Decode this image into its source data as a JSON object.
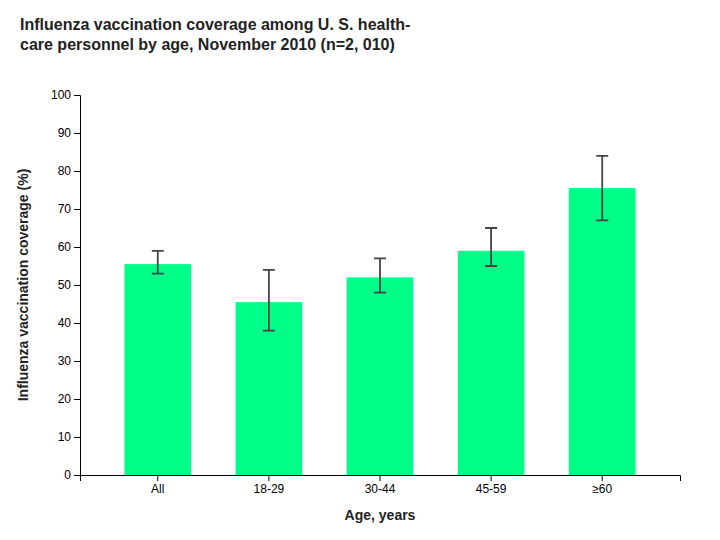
{
  "chart_data": {
    "type": "bar",
    "title": "Influenza vaccination coverage among U. S. health-\ncare personnel by age, November 2010 (n=2, 010)",
    "xlabel": "Age, years",
    "ylabel": "Influenza vaccination coverage (%)",
    "categories": [
      "All",
      "18-29",
      "30-44",
      "45-59",
      "≥60"
    ],
    "values": [
      55.5,
      45.5,
      52.0,
      59.0,
      75.5
    ],
    "error_low": [
      2.5,
      7.5,
      4.0,
      4.0,
      8.5
    ],
    "error_high": [
      3.5,
      8.5,
      5.0,
      6.0,
      8.5
    ],
    "color": "#00FF88",
    "ylim": [
      0,
      100
    ],
    "yticks": [
      0,
      10,
      20,
      30,
      40,
      50,
      60,
      70,
      80,
      90,
      100
    ],
    "grid": false
  }
}
